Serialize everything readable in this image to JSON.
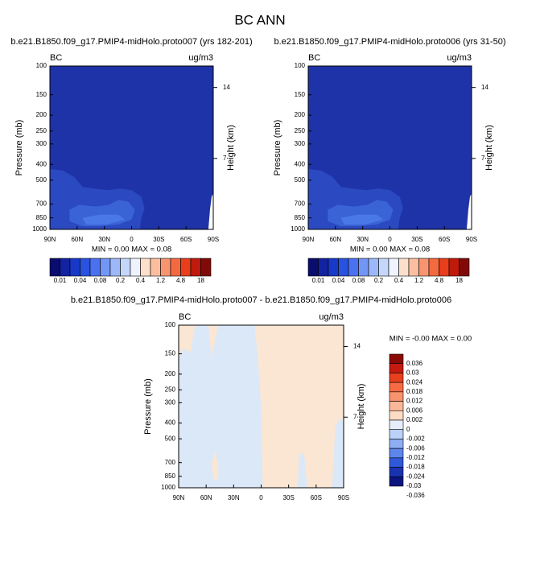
{
  "title": "BC ANN",
  "panels": [
    {
      "subtitle": "b.e21.B1850.f09_g17.PMIP4-midHolo.proto007 (yrs 182-201)",
      "left_label": "BC",
      "right_label": "ug/m3",
      "ylabel": "Pressure (mb)",
      "y2label": "Height (km)",
      "ylim": [
        1000,
        100
      ],
      "yticks": [
        1000,
        850,
        700,
        500,
        400,
        300,
        250,
        200,
        150,
        100
      ],
      "y2ticks": [
        7,
        14
      ],
      "xticks": [
        "90N",
        "60N",
        "30N",
        "0",
        "30S",
        "60S",
        "90S"
      ],
      "stats": "MIN =   0.00   MAX =   0.08"
    },
    {
      "subtitle": "b.e21.B1850.f09_g17.PMIP4-midHolo.proto006 (yrs 31-50)",
      "left_label": "BC",
      "right_label": "ug/m3",
      "ylabel": "Pressure (mb)",
      "y2label": "Height (km)",
      "ylim": [
        1000,
        100
      ],
      "yticks": [
        1000,
        850,
        700,
        500,
        400,
        300,
        250,
        200,
        150,
        100
      ],
      "y2ticks": [
        7,
        14
      ],
      "xticks": [
        "90N",
        "60N",
        "30N",
        "0",
        "30S",
        "60S",
        "90S"
      ],
      "stats": "MIN =   0.00   MAX =   0.08"
    },
    {
      "subtitle": "b.e21.B1850.f09_g17.PMIP4-midHolo.proto007 - b.e21.B1850.f09_g17.PMIP4-midHolo.proto006",
      "left_label": "BC",
      "right_label": "ug/m3",
      "ylabel": "Pressure (mb)",
      "y2label": "Height (km)",
      "ylim": [
        1000,
        100
      ],
      "yticks": [
        1000,
        850,
        700,
        500,
        400,
        300,
        250,
        200,
        150,
        100
      ],
      "y2ticks": [
        7,
        14
      ],
      "xticks": [
        "90N",
        "60N",
        "30N",
        "0",
        "30S",
        "60S",
        "90S"
      ],
      "stats": "MIN = -0.00   MAX =   0.00"
    }
  ],
  "colorbars": [
    {
      "colors": [
        "#0a0c6e",
        "#1222a0",
        "#1838c8",
        "#2a52e0",
        "#4a72f0",
        "#7196f5",
        "#9cb8f8",
        "#c4d7fb",
        "#eef3fd",
        "#fde0cc",
        "#fbbfa0",
        "#f89570",
        "#f46a40",
        "#e83e1c",
        "#c01a0c",
        "#800a08"
      ],
      "labels": [
        "0.01",
        "0.04",
        "0.08",
        "0.2",
        "0.4",
        "1.2",
        "4.8",
        "18"
      ]
    },
    {
      "colors": [
        "#0a0c6e",
        "#1222a0",
        "#1838c8",
        "#2a52e0",
        "#4a72f0",
        "#7196f5",
        "#9cb8f8",
        "#c4d7fb",
        "#eef3fd",
        "#fde0cc",
        "#fbbfa0",
        "#f89570",
        "#f46a40",
        "#e83e1c",
        "#c01a0c",
        "#800a08"
      ],
      "labels": [
        "0.01",
        "0.04",
        "0.08",
        "0.2",
        "0.4",
        "1.2",
        "4.8",
        "18"
      ]
    },
    {
      "colors": [
        "#8b0a06",
        "#c41a10",
        "#e8401e",
        "#f66a44",
        "#f9936e",
        "#fbb898",
        "#fddcc4",
        "#e6eefb",
        "#bcd1f8",
        "#8eaef3",
        "#5d86ec",
        "#3058da",
        "#1832b0",
        "#0c1480"
      ],
      "labels": [
        "0.036",
        "0.03",
        "0.024",
        "0.018",
        "0.012",
        "0.006",
        "0.002",
        "0",
        "-0.002",
        "-0.006",
        "-0.012",
        "-0.018",
        "-0.024",
        "-0.03",
        "-0.036"
      ]
    }
  ]
}
